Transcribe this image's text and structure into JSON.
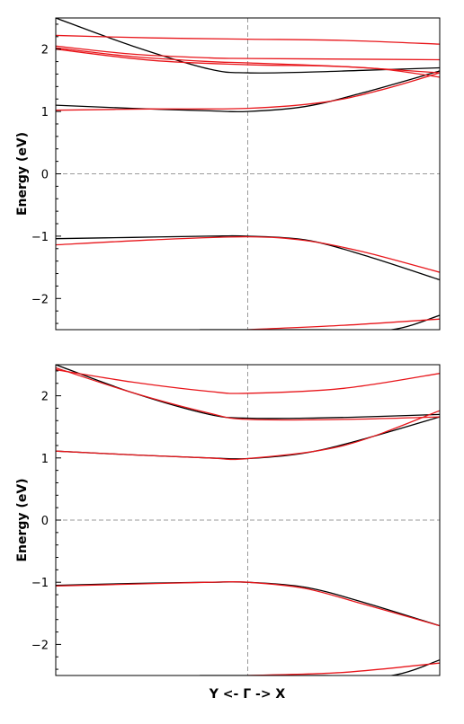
{
  "xlabel": "Y <-  Γ  -> X",
  "colors": {
    "black_series": "#000000",
    "red_series": "#e8161b",
    "reference_lines": "#999999"
  },
  "chart_data": [
    {
      "type": "line",
      "title": "",
      "ylabel": "Energy (eV)",
      "ylim": [
        -2.5,
        2.5
      ],
      "xlim": [
        -1,
        1
      ],
      "yticks": [
        -2,
        -1,
        0,
        1,
        2
      ],
      "ytick_labels": [
        "−2",
        "−1",
        "0",
        "1",
        "2"
      ],
      "grid": false,
      "reference_lines": {
        "x": 0,
        "y": 0
      },
      "series": [
        {
          "color": "black",
          "x": [
            -1,
            -0.6,
            -0.2,
            0,
            0.3,
            0.6,
            1
          ],
          "y": [
            2.5,
            2.05,
            1.68,
            1.62,
            1.63,
            1.66,
            1.7
          ]
        },
        {
          "color": "black",
          "x": [
            -1,
            -0.6,
            -0.2,
            0,
            0.3,
            0.6,
            1
          ],
          "y": [
            1.1,
            1.05,
            1.01,
            1.0,
            1.08,
            1.3,
            1.65
          ]
        },
        {
          "color": "black",
          "x": [
            -1,
            -0.6,
            -0.2,
            0,
            0.3,
            0.6,
            1
          ],
          "y": [
            -1.04,
            -1.02,
            -1.0,
            -1.0,
            -1.06,
            -1.3,
            -1.7
          ]
        },
        {
          "color": "black",
          "x": [
            -0.25,
            0,
            0.4,
            0.75,
            1
          ],
          "y": [
            -2.5,
            -2.5,
            -2.5,
            -2.5,
            -2.27
          ]
        },
        {
          "color": "red",
          "x": [
            -1,
            -0.5,
            0,
            0.5,
            1
          ],
          "y": [
            2.22,
            2.18,
            2.16,
            2.14,
            2.08
          ]
        },
        {
          "color": "red",
          "x": [
            -1,
            -0.6,
            -0.2,
            0,
            0.5,
            1
          ],
          "y": [
            2.05,
            1.92,
            1.86,
            1.85,
            1.84,
            1.83
          ]
        },
        {
          "color": "red",
          "x": [
            -1,
            -0.6,
            -0.2,
            0,
            0.5,
            1
          ],
          "y": [
            2.02,
            1.88,
            1.8,
            1.78,
            1.72,
            1.62
          ]
        },
        {
          "color": "red",
          "x": [
            -1,
            -0.5,
            0,
            0.4,
            0.7,
            1
          ],
          "y": [
            2.0,
            1.82,
            1.75,
            1.73,
            1.68,
            1.55
          ]
        },
        {
          "color": "red",
          "x": [
            -1,
            -0.5,
            0,
            0.4,
            0.7,
            1
          ],
          "y": [
            1.02,
            1.04,
            1.05,
            1.15,
            1.35,
            1.62
          ]
        },
        {
          "color": "red",
          "x": [
            -1,
            -0.5,
            0,
            0.3,
            0.6,
            1
          ],
          "y": [
            -1.14,
            -1.06,
            -1.01,
            -1.07,
            -1.25,
            -1.58
          ]
        },
        {
          "color": "red",
          "x": [
            0,
            0.5,
            1
          ],
          "y": [
            -2.5,
            -2.43,
            -2.33
          ]
        }
      ]
    },
    {
      "type": "line",
      "title": "",
      "ylabel": "Energy (eV)",
      "ylim": [
        -2.5,
        2.5
      ],
      "xlim": [
        -1,
        1
      ],
      "yticks": [
        -2,
        -1,
        0,
        1,
        2
      ],
      "ytick_labels": [
        "−2",
        "−1",
        "0",
        "1",
        "2"
      ],
      "grid": false,
      "reference_lines": {
        "x": 0,
        "y": 0
      },
      "series": [
        {
          "color": "black",
          "x": [
            -1,
            -0.6,
            -0.2,
            0,
            0.3,
            0.6,
            1
          ],
          "y": [
            2.5,
            2.05,
            1.7,
            1.64,
            1.64,
            1.66,
            1.7
          ]
        },
        {
          "color": "black",
          "x": [
            -1,
            -0.6,
            -0.2,
            0,
            0.3,
            0.6,
            1
          ],
          "y": [
            1.11,
            1.05,
            1.0,
            0.99,
            1.08,
            1.3,
            1.66
          ]
        },
        {
          "color": "black",
          "x": [
            -1,
            -0.6,
            -0.2,
            0,
            0.3,
            0.6,
            1
          ],
          "y": [
            -1.05,
            -1.02,
            -1.0,
            -1.0,
            -1.08,
            -1.32,
            -1.7
          ]
        },
        {
          "color": "black",
          "x": [
            -0.25,
            0,
            0.4,
            0.75,
            1
          ],
          "y": [
            -2.5,
            -2.5,
            -2.5,
            -2.5,
            -2.25
          ]
        },
        {
          "color": "red",
          "x": [
            -1,
            -0.6,
            -0.2,
            0,
            0.5,
            1
          ],
          "y": [
            2.42,
            2.22,
            2.07,
            2.04,
            2.12,
            2.36
          ]
        },
        {
          "color": "red",
          "x": [
            -1,
            -0.6,
            -0.2,
            0,
            0.5,
            1
          ],
          "y": [
            2.45,
            2.05,
            1.72,
            1.62,
            1.62,
            1.66
          ]
        },
        {
          "color": "red",
          "x": [
            -1,
            -0.6,
            -0.2,
            0,
            0.5,
            1
          ],
          "y": [
            1.11,
            1.05,
            1.0,
            0.99,
            1.2,
            1.76
          ]
        },
        {
          "color": "red",
          "x": [
            -1,
            -0.6,
            -0.2,
            0,
            0.3,
            0.6,
            1
          ],
          "y": [
            -1.06,
            -1.03,
            -1.0,
            -1.0,
            -1.1,
            -1.35,
            -1.7
          ]
        },
        {
          "color": "red",
          "x": [
            0,
            0.5,
            1
          ],
          "y": [
            -2.5,
            -2.45,
            -2.3
          ]
        }
      ]
    }
  ]
}
